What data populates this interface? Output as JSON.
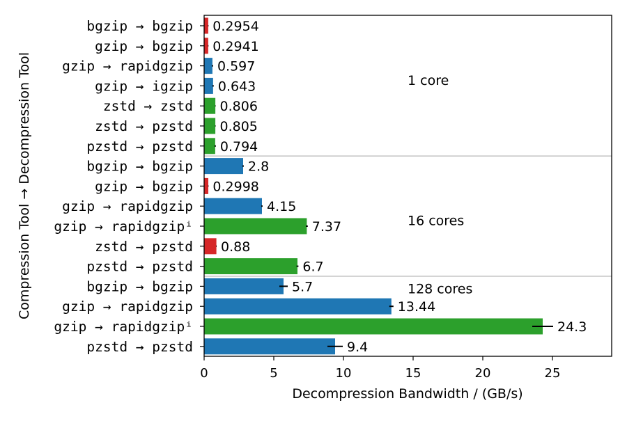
{
  "chart_data": {
    "type": "bar",
    "orientation": "horizontal",
    "xlabel": "Decompression Bandwidth / (GB/s)",
    "ylabel": "Compression Tool → Decompression Tool",
    "xlim": [
      0,
      29.25
    ],
    "xticks": [
      "0",
      "5",
      "10",
      "15",
      "20",
      "25"
    ],
    "xtick_values": [
      0,
      5,
      10,
      15,
      20,
      25
    ],
    "colors": {
      "red": "#d62728",
      "blue": "#1f77b4",
      "green": "#2ca02c"
    },
    "groups": [
      {
        "label": "1 core",
        "label_x": 14.6,
        "row": 2.7
      },
      {
        "label": "16 cores",
        "label_x": 14.6,
        "row": 9.7
      },
      {
        "label": "128 cores",
        "label_x": 14.6,
        "row": 13.1
      }
    ],
    "separators_after_row": [
      6,
      12
    ],
    "bars": [
      {
        "label": "bgzip → bgzip",
        "value": 0.2954,
        "text": "0.2954",
        "error": 0.02,
        "color": "red"
      },
      {
        "label": "gzip → bgzip",
        "value": 0.2941,
        "text": "0.2941",
        "error": 0.02,
        "color": "red"
      },
      {
        "label": "gzip → rapidgzip",
        "value": 0.597,
        "text": "0.597",
        "error": 0.05,
        "color": "blue"
      },
      {
        "label": "gzip → igzip",
        "value": 0.643,
        "text": "0.643",
        "error": 0.05,
        "color": "blue"
      },
      {
        "label": "zstd → zstd",
        "value": 0.806,
        "text": "0.806",
        "error": 0.02,
        "color": "green"
      },
      {
        "label": "zstd → pzstd",
        "value": 0.805,
        "text": "0.805",
        "error": 0.02,
        "color": "green"
      },
      {
        "label": "pzstd → pzstd",
        "value": 0.794,
        "text": "0.794",
        "error": 0.05,
        "color": "green"
      },
      {
        "label": "bgzip → bgzip",
        "value": 2.8,
        "text": "2.8",
        "error": 0.05,
        "color": "blue"
      },
      {
        "label": "gzip → bgzip",
        "value": 0.2998,
        "text": "0.2998",
        "error": 0.02,
        "color": "red"
      },
      {
        "label": "gzip → rapidgzip",
        "value": 4.15,
        "text": "4.15",
        "error": 0.05,
        "color": "blue"
      },
      {
        "label": "gzip → rapidgzipⁱ",
        "value": 7.37,
        "text": "7.37",
        "error": 0.07,
        "color": "green"
      },
      {
        "label": "zstd → pzstd",
        "value": 0.88,
        "text": "0.88",
        "error": 0.02,
        "color": "red"
      },
      {
        "label": "pzstd → pzstd",
        "value": 6.7,
        "text": "6.7",
        "error": 0.07,
        "color": "green"
      },
      {
        "label": "bgzip → bgzip",
        "value": 5.7,
        "text": "5.7",
        "error": 0.3,
        "color": "blue"
      },
      {
        "label": "gzip → rapidgzip",
        "value": 13.44,
        "text": "13.44",
        "error": 0.15,
        "color": "blue"
      },
      {
        "label": "gzip → rapidgzipⁱ",
        "value": 24.3,
        "text": "24.3",
        "error": 0.75,
        "color": "green"
      },
      {
        "label": "pzstd → pzstd",
        "value": 9.4,
        "text": "9.4",
        "error": 0.55,
        "color": "blue"
      }
    ]
  }
}
